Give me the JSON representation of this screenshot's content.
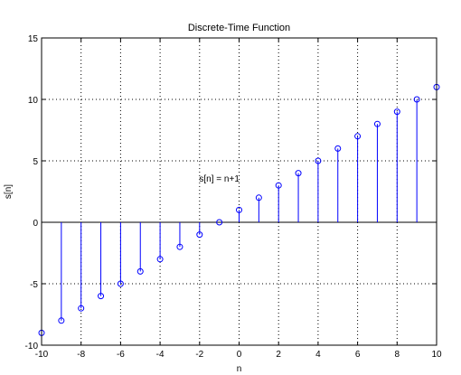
{
  "chart_data": {
    "type": "stem",
    "title": "Discrete-Time Function",
    "xlabel": "n",
    "ylabel": "s[n]",
    "annotation": "s[n] = n+1",
    "xlim": [
      -10,
      10
    ],
    "ylim": [
      -10,
      15
    ],
    "xticks": [
      -10,
      -8,
      -6,
      -4,
      -2,
      0,
      2,
      4,
      6,
      8,
      10
    ],
    "yticks": [
      -10,
      -5,
      0,
      5,
      10,
      15
    ],
    "grid": true,
    "annotation_pos": [
      -1,
      3.3
    ],
    "x": [
      -10,
      -9,
      -8,
      -7,
      -6,
      -5,
      -4,
      -3,
      -2,
      -1,
      0,
      1,
      2,
      3,
      4,
      5,
      6,
      7,
      8,
      9,
      10
    ],
    "y": [
      -9,
      -8,
      -7,
      -6,
      -5,
      -4,
      -3,
      -2,
      -1,
      0,
      1,
      2,
      3,
      4,
      5,
      6,
      7,
      8,
      9,
      10,
      11
    ],
    "stem_color": "#0000ff",
    "marker": "circle"
  }
}
